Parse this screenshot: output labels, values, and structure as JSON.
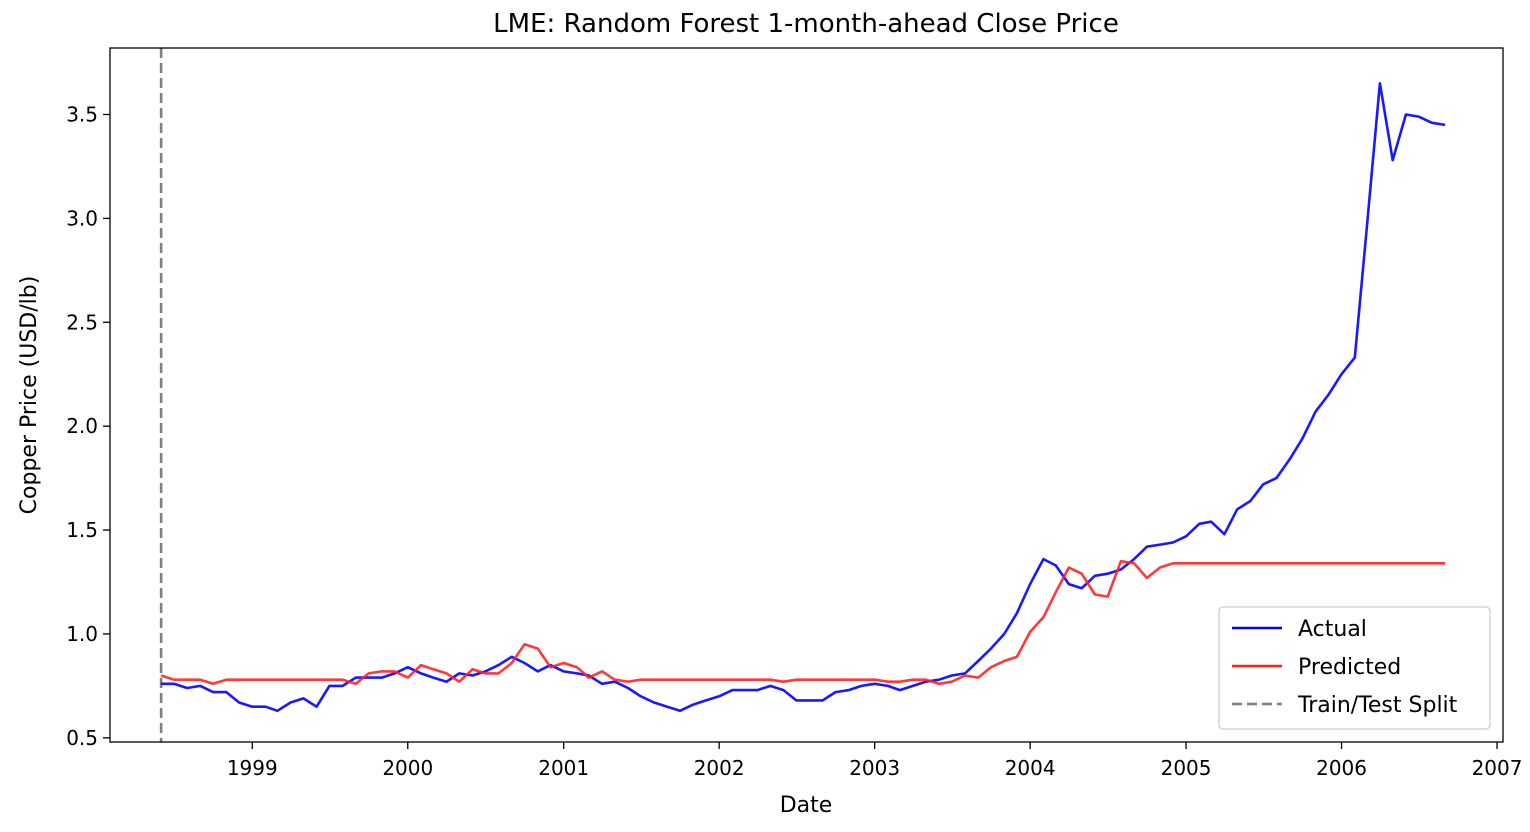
{
  "chart_data": {
    "type": "line",
    "title": "LME: Random Forest 1-month-ahead Close Price",
    "xlabel": "Date",
    "ylabel": "Copper Price (USD/lb)",
    "xlim": [
      "1998-02-01",
      "2007-01-15"
    ],
    "ylim": [
      0.48,
      3.82
    ],
    "x_ticks": [
      {
        "label": "1999",
        "date": "1999-01-01"
      },
      {
        "label": "2000",
        "date": "2000-01-01"
      },
      {
        "label": "2001",
        "date": "2001-01-01"
      },
      {
        "label": "2002",
        "date": "2002-01-01"
      },
      {
        "label": "2003",
        "date": "2003-01-01"
      },
      {
        "label": "2004",
        "date": "2004-01-01"
      },
      {
        "label": "2005",
        "date": "2005-01-01"
      },
      {
        "label": "2006",
        "date": "2006-01-01"
      },
      {
        "label": "2007",
        "date": "2007-01-01"
      }
    ],
    "y_ticks": [
      {
        "label": "0.5",
        "value": 0.5
      },
      {
        "label": "1.0",
        "value": 1.0
      },
      {
        "label": "1.5",
        "value": 1.5
      },
      {
        "label": "2.0",
        "value": 2.0
      },
      {
        "label": "2.5",
        "value": 2.5
      },
      {
        "label": "3.0",
        "value": 3.0
      },
      {
        "label": "3.5",
        "value": 3.5
      }
    ],
    "grid": false,
    "legend_position": "lower-right",
    "x": [
      "1998-06-01",
      "1998-07-01",
      "1998-08-01",
      "1998-09-01",
      "1998-10-01",
      "1998-11-01",
      "1998-12-01",
      "1999-01-01",
      "1999-02-01",
      "1999-03-01",
      "1999-04-01",
      "1999-05-01",
      "1999-06-01",
      "1999-07-01",
      "1999-08-01",
      "1999-09-01",
      "1999-10-01",
      "1999-11-01",
      "1999-12-01",
      "2000-01-01",
      "2000-02-01",
      "2000-03-01",
      "2000-04-01",
      "2000-05-01",
      "2000-06-01",
      "2000-07-01",
      "2000-08-01",
      "2000-09-01",
      "2000-10-01",
      "2000-11-01",
      "2000-12-01",
      "2001-01-01",
      "2001-02-01",
      "2001-03-01",
      "2001-04-01",
      "2001-05-01",
      "2001-06-01",
      "2001-07-01",
      "2001-08-01",
      "2001-09-01",
      "2001-10-01",
      "2001-11-01",
      "2001-12-01",
      "2002-01-01",
      "2002-02-01",
      "2002-03-01",
      "2002-04-01",
      "2002-05-01",
      "2002-06-01",
      "2002-07-01",
      "2002-08-01",
      "2002-09-01",
      "2002-10-01",
      "2002-11-01",
      "2002-12-01",
      "2003-01-01",
      "2003-02-01",
      "2003-03-01",
      "2003-04-01",
      "2003-05-01",
      "2003-06-01",
      "2003-07-01",
      "2003-08-01",
      "2003-09-01",
      "2003-10-01",
      "2003-11-01",
      "2003-12-01",
      "2004-01-01",
      "2004-02-01",
      "2004-03-01",
      "2004-04-01",
      "2004-05-01",
      "2004-06-01",
      "2004-07-01",
      "2004-08-01",
      "2004-09-01",
      "2004-10-01",
      "2004-11-01",
      "2004-12-01",
      "2005-01-01",
      "2005-02-01",
      "2005-03-01",
      "2005-04-01",
      "2005-05-01",
      "2005-06-01",
      "2005-07-01",
      "2005-08-01",
      "2005-09-01",
      "2005-10-01",
      "2005-11-01",
      "2005-12-01",
      "2006-01-01",
      "2006-02-01",
      "2006-03-01",
      "2006-04-01",
      "2006-05-01",
      "2006-06-01",
      "2006-07-01",
      "2006-08-01",
      "2006-09-01"
    ],
    "series": [
      {
        "name": "Actual",
        "color": "#0000ff",
        "values": [
          0.76,
          0.76,
          0.74,
          0.75,
          0.72,
          0.72,
          0.67,
          0.65,
          0.65,
          0.63,
          0.67,
          0.69,
          0.65,
          0.75,
          0.75,
          0.79,
          0.79,
          0.79,
          0.81,
          0.84,
          0.81,
          0.79,
          0.77,
          0.81,
          0.8,
          0.82,
          0.85,
          0.89,
          0.86,
          0.82,
          0.85,
          0.82,
          0.81,
          0.8,
          0.76,
          0.77,
          0.74,
          0.7,
          0.67,
          0.65,
          0.63,
          0.66,
          0.68,
          0.7,
          0.73,
          0.73,
          0.73,
          0.75,
          0.73,
          0.68,
          0.68,
          0.68,
          0.72,
          0.73,
          0.75,
          0.76,
          0.75,
          0.73,
          0.75,
          0.77,
          0.78,
          0.8,
          0.81,
          0.87,
          0.93,
          1.0,
          1.1,
          1.24,
          1.36,
          1.33,
          1.24,
          1.22,
          1.28,
          1.29,
          1.31,
          1.36,
          1.42,
          1.43,
          1.44,
          1.47,
          1.53,
          1.54,
          1.48,
          1.6,
          1.64,
          1.72,
          1.75,
          1.84,
          1.94,
          2.07,
          2.15,
          2.25,
          2.33,
          2.95,
          3.65,
          3.28,
          3.5,
          3.49,
          3.46,
          3.45
        ]
      },
      {
        "name": "Predicted",
        "color": "#ff2222",
        "values": [
          0.8,
          0.78,
          0.78,
          0.78,
          0.76,
          0.78,
          0.78,
          0.78,
          0.78,
          0.78,
          0.78,
          0.78,
          0.78,
          0.78,
          0.78,
          0.76,
          0.81,
          0.82,
          0.82,
          0.79,
          0.85,
          0.83,
          0.81,
          0.77,
          0.83,
          0.81,
          0.81,
          0.86,
          0.95,
          0.93,
          0.84,
          0.86,
          0.84,
          0.79,
          0.82,
          0.78,
          0.77,
          0.78,
          0.78,
          0.78,
          0.78,
          0.78,
          0.78,
          0.78,
          0.78,
          0.78,
          0.78,
          0.78,
          0.77,
          0.78,
          0.78,
          0.78,
          0.78,
          0.78,
          0.78,
          0.78,
          0.77,
          0.77,
          0.78,
          0.78,
          0.76,
          0.77,
          0.8,
          0.79,
          0.84,
          0.87,
          0.89,
          1.01,
          1.08,
          1.2,
          1.32,
          1.29,
          1.19,
          1.18,
          1.35,
          1.34,
          1.27,
          1.32,
          1.34,
          1.34,
          1.34,
          1.34,
          1.34,
          1.34,
          1.34,
          1.34,
          1.34,
          1.34,
          1.34,
          1.34,
          1.34,
          1.34,
          1.34,
          1.34,
          1.34,
          1.34,
          1.34,
          1.34,
          1.34,
          1.34
        ]
      }
    ],
    "split": {
      "name": "Train/Test Split",
      "date": "1998-06-01",
      "color": "#808080"
    }
  }
}
